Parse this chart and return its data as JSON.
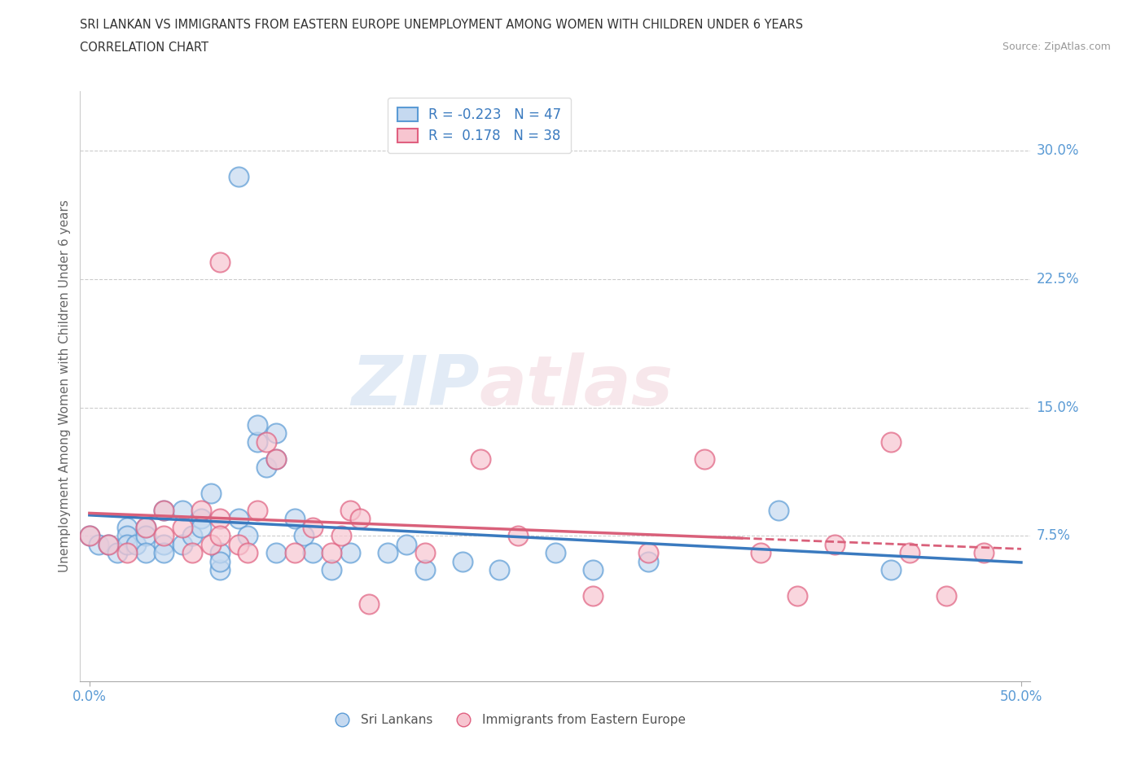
{
  "title_line1": "SRI LANKAN VS IMMIGRANTS FROM EASTERN EUROPE UNEMPLOYMENT AMONG WOMEN WITH CHILDREN UNDER 6 YEARS",
  "title_line2": "CORRELATION CHART",
  "source": "Source: ZipAtlas.com",
  "ylabel": "Unemployment Among Women with Children Under 6 years",
  "xlim": [
    -0.005,
    0.505
  ],
  "ylim": [
    -0.01,
    0.335
  ],
  "xticks": [
    0.0,
    0.5
  ],
  "xticklabels": [
    "0.0%",
    "50.0%"
  ],
  "yticks": [
    0.075,
    0.15,
    0.225,
    0.3
  ],
  "yticklabels": [
    "7.5%",
    "15.0%",
    "22.5%",
    "30.0%"
  ],
  "blue_R": -0.223,
  "blue_N": 47,
  "pink_R": 0.178,
  "pink_N": 38,
  "blue_fill": "#c5d9f0",
  "pink_fill": "#f7c5d0",
  "blue_edge": "#5b9bd5",
  "pink_edge": "#e06080",
  "blue_line_color": "#3a7abf",
  "pink_line_color": "#d9607a",
  "watermark_zip": "ZIP",
  "watermark_atlas": "atlas",
  "legend_label_blue": "R = -0.223   N = 47",
  "legend_label_pink": "R =  0.178   N = 38",
  "bottom_legend_blue": "Sri Lankans",
  "bottom_legend_pink": "Immigrants from Eastern Europe",
  "sri_lankans_x": [
    0.0,
    0.005,
    0.01,
    0.015,
    0.02,
    0.02,
    0.02,
    0.025,
    0.03,
    0.03,
    0.03,
    0.04,
    0.04,
    0.04,
    0.05,
    0.05,
    0.055,
    0.06,
    0.06,
    0.065,
    0.07,
    0.07,
    0.07,
    0.08,
    0.08,
    0.085,
    0.09,
    0.09,
    0.095,
    0.1,
    0.1,
    0.1,
    0.11,
    0.115,
    0.12,
    0.13,
    0.14,
    0.16,
    0.17,
    0.18,
    0.2,
    0.22,
    0.25,
    0.27,
    0.3,
    0.37,
    0.43
  ],
  "sri_lankans_y": [
    0.075,
    0.07,
    0.07,
    0.065,
    0.08,
    0.075,
    0.07,
    0.07,
    0.08,
    0.075,
    0.065,
    0.09,
    0.07,
    0.065,
    0.09,
    0.07,
    0.075,
    0.085,
    0.08,
    0.1,
    0.055,
    0.065,
    0.06,
    0.285,
    0.085,
    0.075,
    0.13,
    0.14,
    0.115,
    0.065,
    0.12,
    0.135,
    0.085,
    0.075,
    0.065,
    0.055,
    0.065,
    0.065,
    0.07,
    0.055,
    0.06,
    0.055,
    0.065,
    0.055,
    0.06,
    0.09,
    0.055
  ],
  "eastern_europe_x": [
    0.0,
    0.01,
    0.02,
    0.03,
    0.04,
    0.04,
    0.05,
    0.055,
    0.06,
    0.065,
    0.07,
    0.07,
    0.07,
    0.08,
    0.085,
    0.09,
    0.095,
    0.1,
    0.11,
    0.12,
    0.13,
    0.135,
    0.14,
    0.145,
    0.15,
    0.18,
    0.21,
    0.23,
    0.27,
    0.3,
    0.33,
    0.36,
    0.38,
    0.4,
    0.43,
    0.44,
    0.46,
    0.48
  ],
  "eastern_europe_y": [
    0.075,
    0.07,
    0.065,
    0.08,
    0.075,
    0.09,
    0.08,
    0.065,
    0.09,
    0.07,
    0.085,
    0.075,
    0.235,
    0.07,
    0.065,
    0.09,
    0.13,
    0.12,
    0.065,
    0.08,
    0.065,
    0.075,
    0.09,
    0.085,
    0.035,
    0.065,
    0.12,
    0.075,
    0.04,
    0.065,
    0.12,
    0.065,
    0.04,
    0.07,
    0.13,
    0.065,
    0.04,
    0.065
  ]
}
